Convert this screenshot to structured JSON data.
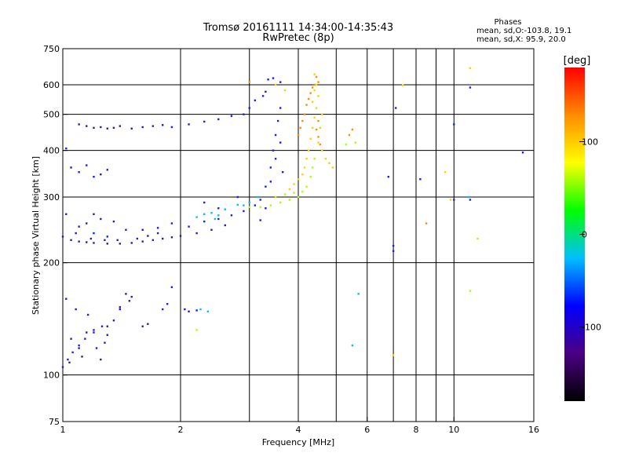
{
  "chart_data": {
    "type": "scatter",
    "title": "Tromsø 20161111 14:34:00-14:35:43",
    "subtitle": "RwPretec (8p)",
    "xlabel": "Frequency [MHz]",
    "ylabel": "Stationary phase Virtual Height [km]",
    "x_scale": "log",
    "y_scale": "log",
    "xlim": [
      1,
      16
    ],
    "ylim": [
      75,
      750
    ],
    "x_ticks": [
      1,
      2,
      4,
      6,
      8,
      10,
      16
    ],
    "x_tick_labels": [
      "1",
      "2",
      "4",
      "6",
      "8",
      "10",
      "16"
    ],
    "x_grid": [
      2,
      3,
      4,
      5,
      6,
      7,
      8,
      9,
      10
    ],
    "y_ticks": [
      75,
      100,
      200,
      300,
      400,
      500,
      600,
      750
    ],
    "y_tick_labels": [
      "75",
      "100",
      "200",
      "300",
      "400",
      "500",
      "600",
      "750"
    ],
    "y_grid": [
      100,
      200,
      300,
      400,
      500,
      600
    ],
    "grid": true,
    "info": {
      "heading": "Phases",
      "line_o": "mean, sd,O:-103.8, 19.1",
      "line_x": "mean, sd,X:  95.9, 20.0"
    },
    "colorbar": {
      "label": "[deg]",
      "range": [
        -180,
        180
      ],
      "ticks": [
        100,
        0,
        -100
      ],
      "tick_labels": [
        "100",
        "0",
        "-100"
      ],
      "colors": [
        "#000000",
        "#4b0082",
        "#0000ff",
        "#00bfff",
        "#00ff00",
        "#ffff00",
        "#ff8c00",
        "#ff0000"
      ]
    },
    "series": [
      {
        "color": "#1a1aff",
        "phase": -110,
        "points": [
          [
            1.0,
            105
          ],
          [
            1.03,
            110
          ],
          [
            1.06,
            115
          ],
          [
            1.1,
            120
          ],
          [
            1.14,
            125
          ],
          [
            1.2,
            130
          ],
          [
            1.26,
            135
          ],
          [
            1.3,
            128
          ],
          [
            1.35,
            140
          ],
          [
            1.4,
            150
          ],
          [
            1.45,
            165
          ],
          [
            1.5,
            162
          ],
          [
            1.02,
            160
          ],
          [
            1.08,
            150
          ],
          [
            1.16,
            145
          ],
          [
            1.22,
            118
          ],
          [
            1.28,
            122
          ],
          [
            1.8,
            150
          ],
          [
            1.85,
            155
          ],
          [
            1.9,
            172
          ],
          [
            2.05,
            150
          ],
          [
            2.1,
            148
          ],
          [
            2.2,
            149
          ],
          [
            1.02,
            270
          ],
          [
            1.1,
            250
          ],
          [
            1.2,
            240
          ],
          [
            1.3,
            235
          ],
          [
            1.45,
            245
          ],
          [
            1.6,
            245
          ],
          [
            1.75,
            248
          ],
          [
            1.9,
            255
          ],
          [
            2.1,
            250
          ],
          [
            2.3,
            258
          ],
          [
            2.5,
            262
          ],
          [
            2.7,
            268
          ],
          [
            2.9,
            275
          ],
          [
            3.1,
            285
          ],
          [
            3.2,
            295
          ],
          [
            3.3,
            320
          ],
          [
            3.4,
            360
          ],
          [
            3.45,
            400
          ],
          [
            3.5,
            440
          ],
          [
            3.55,
            480
          ],
          [
            3.6,
            520
          ],
          [
            3.4,
            330
          ],
          [
            3.5,
            380
          ],
          [
            3.6,
            420
          ],
          [
            3.65,
            350
          ],
          [
            3.3,
            280
          ],
          [
            3.2,
            260
          ],
          [
            2.8,
            300
          ],
          [
            2.5,
            280
          ],
          [
            2.3,
            290
          ],
          [
            1.05,
            360
          ],
          [
            1.1,
            350
          ],
          [
            1.15,
            365
          ],
          [
            1.2,
            340
          ],
          [
            1.25,
            345
          ],
          [
            1.3,
            355
          ],
          [
            1.02,
            405
          ],
          [
            3.35,
            620
          ],
          [
            3.45,
            625
          ],
          [
            3.6,
            610
          ],
          [
            3.3,
            575
          ],
          [
            3.25,
            560
          ],
          [
            3.1,
            545
          ],
          [
            3.0,
            520
          ],
          [
            2.9,
            500
          ],
          [
            2.7,
            495
          ],
          [
            2.5,
            485
          ],
          [
            2.3,
            478
          ],
          [
            2.1,
            470
          ],
          [
            1.9,
            462
          ],
          [
            7.1,
            520
          ],
          [
            6.8,
            340
          ],
          [
            7.0,
            215
          ],
          [
            7.0,
            222
          ],
          [
            8.2,
            335
          ],
          [
            10.0,
            470
          ],
          [
            10.0,
            295
          ],
          [
            11.0,
            295
          ],
          [
            11.0,
            590
          ],
          [
            15.0,
            395
          ]
        ]
      },
      {
        "color": "#3a1a9a",
        "phase": -140,
        "points": [
          [
            1.0,
            235
          ],
          [
            1.05,
            230
          ],
          [
            1.1,
            228
          ],
          [
            1.15,
            227
          ],
          [
            1.2,
            226
          ],
          [
            1.3,
            225
          ],
          [
            1.4,
            225
          ],
          [
            1.5,
            226
          ],
          [
            1.6,
            228
          ],
          [
            1.7,
            230
          ],
          [
            1.8,
            232
          ],
          [
            1.9,
            234
          ],
          [
            2.0,
            236
          ],
          [
            2.2,
            240
          ],
          [
            2.4,
            245
          ],
          [
            2.6,
            252
          ],
          [
            1.08,
            240
          ],
          [
            1.18,
            232
          ],
          [
            1.28,
            230
          ],
          [
            1.38,
            230
          ],
          [
            1.55,
            232
          ],
          [
            1.65,
            236
          ],
          [
            1.75,
            240
          ],
          [
            1.2,
            270
          ],
          [
            1.25,
            262
          ],
          [
            1.15,
            255
          ],
          [
            1.35,
            258
          ],
          [
            1.4,
            465
          ],
          [
            1.35,
            460
          ],
          [
            1.3,
            458
          ],
          [
            1.25,
            462
          ],
          [
            1.2,
            460
          ],
          [
            1.15,
            465
          ],
          [
            1.1,
            470
          ],
          [
            1.5,
            458
          ],
          [
            1.6,
            462
          ],
          [
            1.7,
            465
          ],
          [
            1.8,
            468
          ],
          [
            1.05,
            125
          ],
          [
            1.1,
            118
          ],
          [
            1.15,
            130
          ],
          [
            1.2,
            132
          ],
          [
            1.3,
            135
          ],
          [
            1.4,
            152
          ],
          [
            1.48,
            158
          ],
          [
            1.6,
            135
          ],
          [
            1.65,
            137
          ],
          [
            1.25,
            110
          ],
          [
            1.04,
            108
          ],
          [
            1.12,
            112
          ]
        ]
      },
      {
        "color": "#00bfff",
        "phase": -40,
        "points": [
          [
            2.2,
            265
          ],
          [
            2.3,
            270
          ],
          [
            2.4,
            272
          ],
          [
            2.5,
            268
          ],
          [
            2.6,
            278
          ],
          [
            2.8,
            286
          ],
          [
            3.0,
            290
          ],
          [
            3.15,
            300
          ],
          [
            2.9,
            285
          ],
          [
            2.45,
            262
          ],
          [
            2.25,
            150
          ],
          [
            2.35,
            148
          ],
          [
            5.5,
            120
          ],
          [
            5.7,
            165
          ],
          [
            10.9,
            300
          ]
        ]
      },
      {
        "color": "#aaff00",
        "phase": 50,
        "points": [
          [
            3.0,
            282
          ],
          [
            3.2,
            282
          ],
          [
            3.4,
            285
          ],
          [
            3.6,
            290
          ],
          [
            3.8,
            295
          ],
          [
            4.0,
            300
          ],
          [
            4.1,
            310
          ],
          [
            4.2,
            320
          ],
          [
            4.3,
            340
          ],
          [
            4.35,
            360
          ],
          [
            4.4,
            380
          ],
          [
            3.5,
            300
          ],
          [
            3.7,
            305
          ],
          [
            3.9,
            308
          ],
          [
            2.2,
            132
          ],
          [
            5.3,
            415
          ],
          [
            5.6,
            420
          ],
          [
            11.0,
            168
          ],
          [
            11.5,
            232
          ]
        ]
      },
      {
        "color": "#ffd000",
        "phase": 100,
        "points": [
          [
            3.8,
            315
          ],
          [
            3.9,
            325
          ],
          [
            4.0,
            335
          ],
          [
            4.1,
            345
          ],
          [
            4.15,
            360
          ],
          [
            4.2,
            380
          ],
          [
            4.25,
            400
          ],
          [
            4.3,
            430
          ],
          [
            4.35,
            460
          ],
          [
            4.4,
            490
          ],
          [
            4.45,
            520
          ],
          [
            4.5,
            560
          ],
          [
            4.45,
            600
          ],
          [
            4.4,
            640
          ],
          [
            4.5,
            420
          ],
          [
            4.6,
            400
          ],
          [
            4.7,
            380
          ],
          [
            4.8,
            370
          ],
          [
            4.9,
            360
          ],
          [
            4.55,
            460
          ],
          [
            4.6,
            500
          ],
          [
            4.35,
            540
          ],
          [
            4.4,
            580
          ],
          [
            3.7,
            580
          ],
          [
            3.5,
            600
          ],
          [
            7.0,
            113
          ],
          [
            9.5,
            350
          ],
          [
            9.8,
            295
          ],
          [
            11.0,
            665
          ],
          [
            7.4,
            598
          ]
        ]
      },
      {
        "color": "#ff8c00",
        "phase": 130,
        "points": [
          [
            4.45,
            630
          ],
          [
            4.5,
            610
          ],
          [
            4.4,
            600
          ],
          [
            4.35,
            590
          ],
          [
            4.3,
            570
          ],
          [
            4.25,
            550
          ],
          [
            4.2,
            530
          ],
          [
            4.15,
            500
          ],
          [
            4.1,
            480
          ],
          [
            4.05,
            460
          ],
          [
            4.0,
            440
          ],
          [
            4.5,
            480
          ],
          [
            4.45,
            455
          ],
          [
            4.5,
            435
          ],
          [
            4.55,
            415
          ],
          [
            5.4,
            440
          ],
          [
            5.5,
            455
          ],
          [
            8.5,
            255
          ],
          [
            3.0,
            610
          ]
        ]
      }
    ]
  }
}
